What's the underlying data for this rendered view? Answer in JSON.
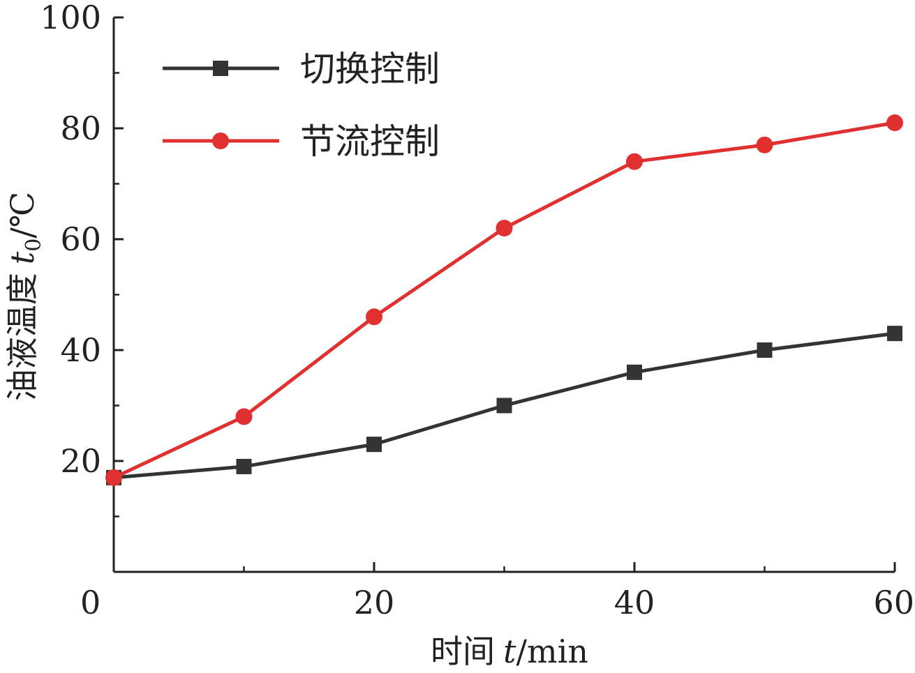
{
  "chart_data": {
    "type": "line",
    "xlabel": {
      "prefix": "时间",
      "var": "t",
      "unit": "/min"
    },
    "ylabel": {
      "prefix": "油液温度",
      "var": "t",
      "sub": "0",
      "unit": "/℃"
    },
    "xlim": [
      0,
      60
    ],
    "ylim": [
      0,
      100
    ],
    "x_ticks": [
      0,
      20,
      40,
      60
    ],
    "x_minor_ticks": [
      10,
      30,
      50
    ],
    "y_ticks": [
      20,
      40,
      60,
      80,
      100
    ],
    "y_minor_ticks": [
      10,
      30,
      50,
      70,
      90
    ],
    "grid": false,
    "legend_position": "top-left",
    "x": [
      0,
      10,
      20,
      30,
      40,
      50,
      60
    ],
    "series": [
      {
        "name": "切换控制",
        "values": [
          17,
          19,
          23,
          30,
          36,
          40,
          43
        ],
        "color": "#333333",
        "marker": "square"
      },
      {
        "name": "节流控制",
        "values": [
          17,
          28,
          46,
          62,
          74,
          77,
          81
        ],
        "color": "#e03030",
        "marker": "circle"
      }
    ]
  }
}
